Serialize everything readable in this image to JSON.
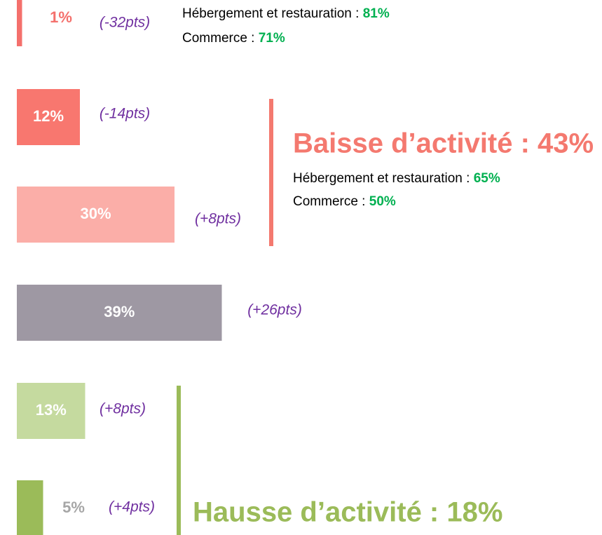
{
  "chart_data": {
    "type": "bar",
    "categories": [
      null,
      null,
      null,
      null,
      null,
      null
    ],
    "values": [
      1,
      12,
      30,
      39,
      13,
      5
    ],
    "value_labels": [
      "1%",
      "12%",
      "30%",
      "39%",
      "13%",
      "5%"
    ],
    "colors": [
      "#f4706c",
      "#f8776f",
      "#fbaea8",
      "#9e98a3",
      "#c5da9f",
      "#9bbb59"
    ],
    "changes": [
      -32,
      -14,
      8,
      26,
      8,
      4
    ],
    "change_labels": [
      "(-32pts)",
      "(-14pts)",
      "(+8pts)",
      "(+26pts)",
      "(+8pts)",
      "(+4pts)"
    ],
    "annotations": [
      {
        "lines": [
          {
            "label": "Hébergement et restauration : ",
            "value": "81%"
          },
          {
            "label": "Commerce : ",
            "value": "71%"
          }
        ]
      },
      {
        "title": "Baisse d’activité : 43%",
        "color": "#f4796f",
        "lines": [
          {
            "label": "Hébergement et restauration : ",
            "value": "65%"
          },
          {
            "label": "Commerce : ",
            "value": "50%"
          }
        ]
      },
      {
        "title": "Hausse d’activité : 18%",
        "color": "#9bbb59"
      }
    ]
  }
}
